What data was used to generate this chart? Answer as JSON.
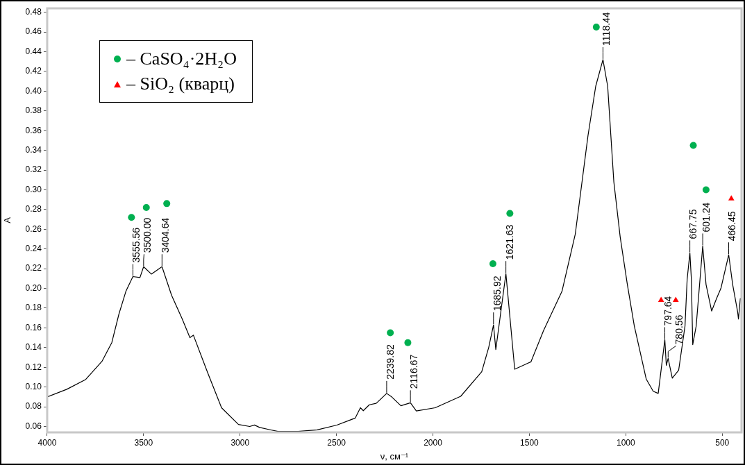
{
  "chart_data": {
    "type": "line",
    "xlabel": "ν, см⁻¹",
    "ylabel": "A",
    "xlim": [
      4000,
      400
    ],
    "xticks": [
      4000,
      3500,
      3000,
      2500,
      2000,
      1500,
      1000,
      500
    ],
    "ylim": [
      0.054,
      0.484
    ],
    "yticks": [
      {
        "value": 0.06,
        "label": "0.06"
      },
      {
        "value": 0.08,
        "label": "0.08"
      },
      {
        "value": 0.1,
        "label": "0.10"
      },
      {
        "value": 0.12,
        "label": "0.12"
      },
      {
        "value": 0.14,
        "label": "0.14"
      },
      {
        "value": 0.16,
        "label": "0.16"
      },
      {
        "value": 0.18,
        "label": "0.18"
      },
      {
        "value": 0.2,
        "label": "0.20"
      },
      {
        "value": 0.22,
        "label": "0.22"
      },
      {
        "value": 0.24,
        "label": "0.24"
      },
      {
        "value": 0.26,
        "label": "0.26"
      },
      {
        "value": 0.28,
        "label": "0.28"
      },
      {
        "value": 0.3,
        "label": "0.30"
      },
      {
        "value": 0.32,
        "label": "0.32"
      },
      {
        "value": 0.34,
        "label": "0.34"
      },
      {
        "value": 0.36,
        "label": "0.36"
      },
      {
        "value": 0.38,
        "label": "0.38"
      },
      {
        "value": 0.4,
        "label": "0.40"
      },
      {
        "value": 0.42,
        "label": "0.42"
      },
      {
        "value": 0.44,
        "label": "0.44"
      },
      {
        "value": 0.46,
        "label": "0.46"
      },
      {
        "value": 0.48,
        "label": "0.48"
      }
    ],
    "legend": "top left",
    "series": [
      {
        "color": "#000000",
        "marker": "none",
        "x": [
          4000,
          3898,
          3800,
          3716,
          3665,
          3628,
          3592,
          3555.56,
          3519,
          3500,
          3460,
          3404.64,
          3355,
          3300,
          3260,
          3242,
          3169,
          3096,
          3008,
          2950,
          2925,
          2899,
          2852,
          2804,
          2700,
          2600,
          2498,
          2403,
          2376,
          2361,
          2330,
          2294,
          2239.82,
          2214,
          2166,
          2116.67,
          2086,
          1988,
          1856,
          1747,
          1711,
          1685.92,
          1674,
          1621.63,
          1576,
          1492,
          1426,
          1331,
          1262,
          1196,
          1156,
          1118.44,
          1094,
          1062,
          1029,
          992,
          956,
          894,
          858,
          832,
          797.64,
          790,
          780.56,
          759,
          726,
          693,
          682,
          667.75,
          660,
          653,
          635,
          601.24,
          584,
          555,
          529,
          507,
          466.45,
          446,
          420,
          416,
          406
        ],
        "values": [
          0.09,
          0.0977,
          0.1077,
          0.126,
          0.145,
          0.174,
          0.197,
          0.212,
          0.211,
          0.222,
          0.2145,
          0.222,
          0.193,
          0.169,
          0.15,
          0.1526,
          0.115,
          0.079,
          0.062,
          0.06,
          0.0615,
          0.059,
          0.057,
          0.055,
          0.055,
          0.0565,
          0.0614,
          0.0685,
          0.079,
          0.076,
          0.082,
          0.0835,
          0.0935,
          0.09,
          0.081,
          0.084,
          0.0757,
          0.079,
          0.0906,
          0.1155,
          0.14,
          0.163,
          0.138,
          0.215,
          0.118,
          0.1255,
          0.1575,
          0.197,
          0.255,
          0.355,
          0.405,
          0.432,
          0.405,
          0.308,
          0.252,
          0.204,
          0.162,
          0.108,
          0.0957,
          0.0935,
          0.148,
          0.122,
          0.129,
          0.109,
          0.117,
          0.162,
          0.209,
          0.236,
          0.209,
          0.143,
          0.162,
          0.243,
          0.204,
          0.177,
          0.19,
          0.2,
          0.234,
          0.204,
          0.176,
          0.169,
          0.19
        ]
      },
      {
        "type": "scatter",
        "name": "– CaSO₄·2H₂O",
        "color": "#00b050",
        "marker": "circle",
        "x": [
          3563,
          3486,
          3380,
          2221,
          2130,
          1689,
          1601,
          1153,
          650,
          584
        ],
        "values": [
          0.272,
          0.282,
          0.286,
          0.155,
          0.145,
          0.225,
          0.276,
          0.465,
          0.345,
          0.3
        ]
      },
      {
        "type": "scatter",
        "name": "– SiO₂ (кварц)",
        "color": "#ff0000",
        "marker": "triangle",
        "x": [
          817,
          741,
          453
        ],
        "values": [
          0.188,
          0.188,
          0.291
        ]
      }
    ],
    "annotations": [
      {
        "text": "3555.56",
        "x": 3555.56,
        "y": 0.212
      },
      {
        "text": "3500.00",
        "x": 3500,
        "y": 0.222
      },
      {
        "text": "3404.64",
        "x": 3404.64,
        "y": 0.222
      },
      {
        "text": "2239.82",
        "x": 2239.82,
        "y": 0.0935
      },
      {
        "text": "2116.67",
        "x": 2116.67,
        "y": 0.084
      },
      {
        "text": "1685.92",
        "x": 1685.92,
        "y": 0.163
      },
      {
        "text": "1621.63",
        "x": 1621.63,
        "y": 0.215
      },
      {
        "text": "1118.44",
        "x": 1118.44,
        "y": 0.432
      },
      {
        "text": "797.64",
        "x": 797.64,
        "y": 0.148
      },
      {
        "text": "780.56",
        "x": 780.56,
        "y": 0.129
      },
      {
        "text": "667.75",
        "x": 667.75,
        "y": 0.236
      },
      {
        "text": "601.24",
        "x": 601.24,
        "y": 0.243
      },
      {
        "text": "466.45",
        "x": 466.45,
        "y": 0.234
      }
    ]
  }
}
